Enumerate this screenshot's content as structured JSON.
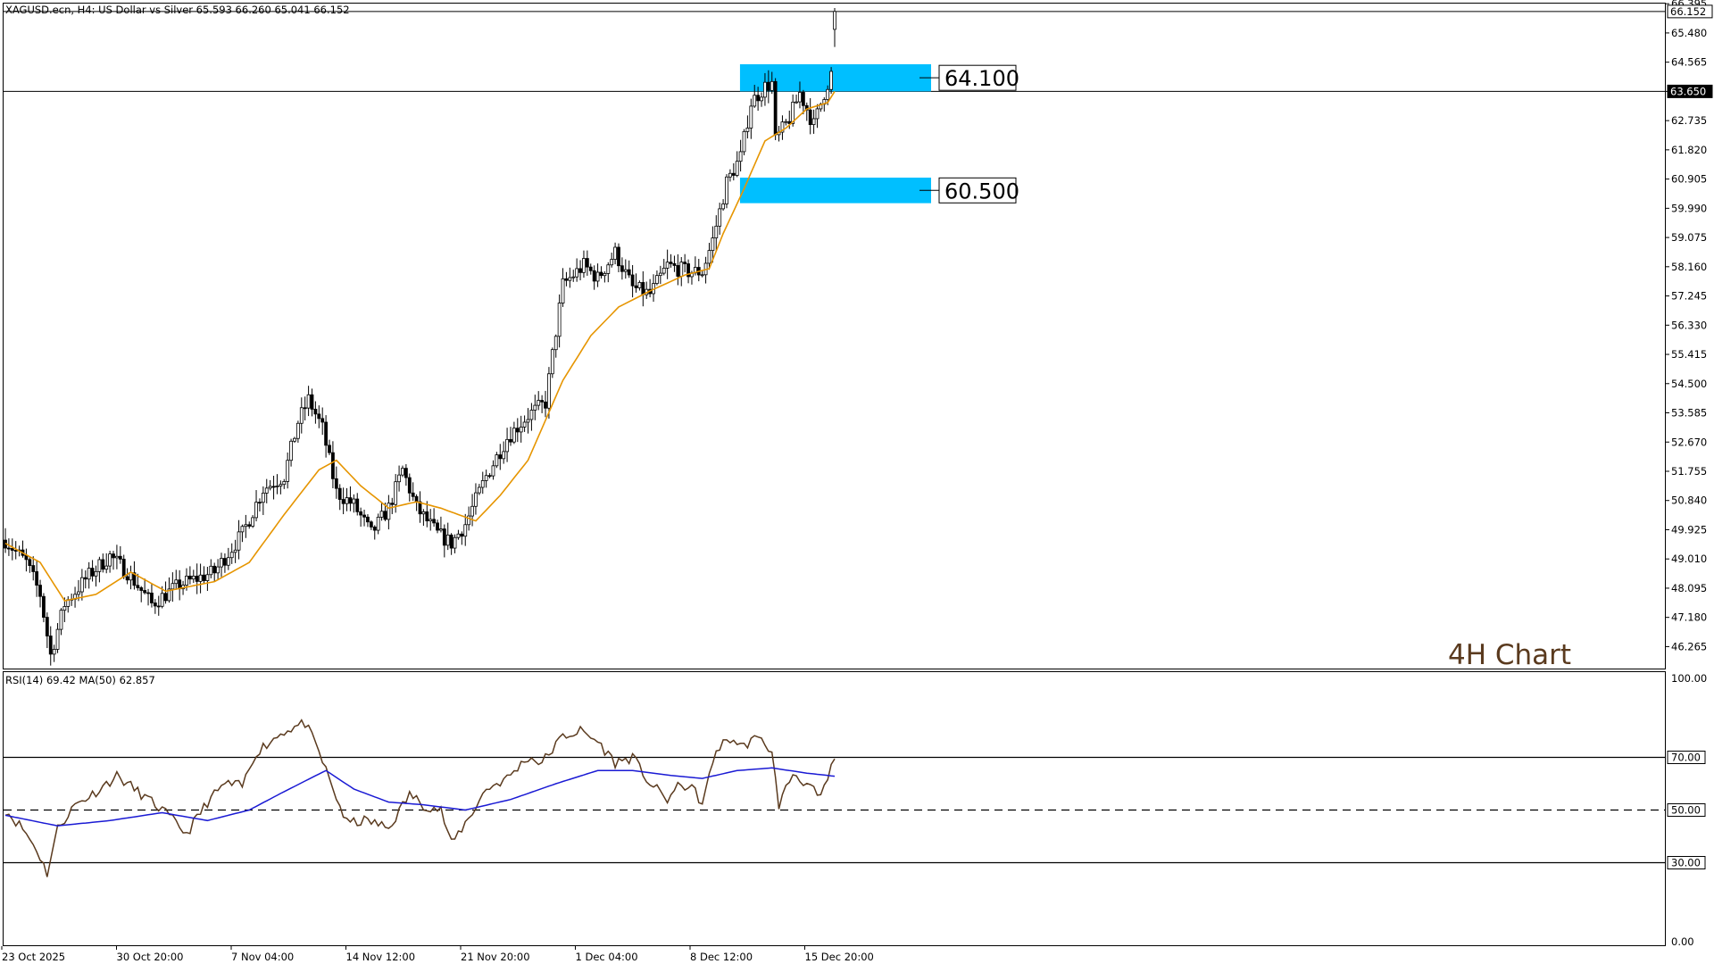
{
  "header": {
    "info": "XAGUSD.ecn, H4:  US Dollar vs Silver  65.593 66.260 65.041 66.152"
  },
  "rsi_header": {
    "info": "RSI(14) 69.42 MA(50) 62.857"
  },
  "watermark": "4H Chart",
  "colors": {
    "bull": "#000000",
    "bear": "#000000",
    "ma": "#e69500",
    "zone": "#00bfff",
    "rsi": "#5a3a1e",
    "rsi_ma": "#1a1ad4",
    "watermark": "#5a3a1e"
  },
  "chart_data": [
    {
      "type": "candlestick",
      "symbol": "XAGUSD.ecn",
      "timeframe": "H4",
      "description": "US Dollar vs Silver",
      "last_bar": {
        "open": 65.593,
        "high": 66.26,
        "low": 65.041,
        "close": 66.152
      },
      "ylim": [
        45.55,
        66.4
      ],
      "price_ticks": [
        "66.395",
        "65.480",
        "64.565",
        "63.650",
        "62.735",
        "61.820",
        "60.905",
        "59.990",
        "59.075",
        "58.160",
        "57.245",
        "56.330",
        "55.415",
        "54.500",
        "53.585",
        "52.670",
        "51.755",
        "50.840",
        "49.925",
        "49.010",
        "48.095",
        "47.180",
        "46.265"
      ],
      "current_price_label": "66.152",
      "horizontal_lines": [
        {
          "price": 66.152,
          "label": "66.152"
        },
        {
          "price": 63.65,
          "label": "63.650"
        }
      ],
      "zones": [
        {
          "top": 64.5,
          "bottom": 63.65,
          "label": "64.100"
        },
        {
          "top": 60.95,
          "bottom": 60.15,
          "label": "60.500"
        }
      ],
      "x_labels": [
        "23 Oct 2025",
        "30 Oct 20:00",
        "7 Nov 04:00",
        "14 Nov 12:00",
        "21 Nov 20:00",
        "1 Dec 04:00",
        "8 Dec 12:00",
        "15 Dec 20:00"
      ],
      "ma_period": 20,
      "close_path": [
        [
          0,
          49.6
        ],
        [
          6,
          48.9
        ],
        [
          10,
          47.9
        ],
        [
          13,
          46.0
        ],
        [
          17,
          47.6
        ],
        [
          24,
          48.5
        ],
        [
          30,
          49.1
        ],
        [
          35,
          48.6
        ],
        [
          42,
          47.6
        ],
        [
          50,
          48.2
        ],
        [
          60,
          48.6
        ],
        [
          68,
          49.8
        ],
        [
          74,
          51.2
        ],
        [
          80,
          51.6
        ],
        [
          84,
          53.3
        ],
        [
          87,
          54.0
        ],
        [
          91,
          53.1
        ],
        [
          95,
          51.1
        ],
        [
          100,
          50.7
        ],
        [
          105,
          49.8
        ],
        [
          110,
          50.6
        ],
        [
          114,
          51.8
        ],
        [
          118,
          50.6
        ],
        [
          124,
          49.8
        ],
        [
          128,
          49.5
        ],
        [
          132,
          50.1
        ],
        [
          138,
          51.6
        ],
        [
          144,
          52.8
        ],
        [
          150,
          53.5
        ],
        [
          155,
          53.9
        ],
        [
          157,
          55.4
        ],
        [
          160,
          57.6
        ],
        [
          166,
          58.2
        ],
        [
          170,
          57.8
        ],
        [
          175,
          58.6
        ],
        [
          180,
          57.5
        ],
        [
          185,
          57.3
        ],
        [
          190,
          58.2
        ],
        [
          196,
          58.0
        ],
        [
          200,
          58.0
        ],
        [
          203,
          59.0
        ],
        [
          207,
          60.8
        ],
        [
          211,
          61.6
        ],
        [
          214,
          63.3
        ],
        [
          218,
          63.8
        ],
        [
          220,
          63.9
        ],
        [
          221,
          62.1
        ],
        [
          225,
          62.8
        ],
        [
          228,
          63.6
        ],
        [
          232,
          62.6
        ],
        [
          235,
          63.6
        ],
        [
          237,
          64.2
        ],
        [
          238,
          66.152
        ]
      ],
      "ma_path": [
        [
          0,
          49.5
        ],
        [
          10,
          48.9
        ],
        [
          17,
          47.7
        ],
        [
          26,
          47.9
        ],
        [
          36,
          48.6
        ],
        [
          46,
          48.0
        ],
        [
          60,
          48.3
        ],
        [
          70,
          48.9
        ],
        [
          80,
          50.4
        ],
        [
          90,
          51.8
        ],
        [
          95,
          52.1
        ],
        [
          102,
          51.3
        ],
        [
          110,
          50.6
        ],
        [
          118,
          50.8
        ],
        [
          125,
          50.6
        ],
        [
          135,
          50.2
        ],
        [
          142,
          51.0
        ],
        [
          150,
          52.1
        ],
        [
          160,
          54.6
        ],
        [
          168,
          56.0
        ],
        [
          176,
          56.9
        ],
        [
          185,
          57.4
        ],
        [
          195,
          57.9
        ],
        [
          202,
          58.1
        ],
        [
          206,
          59.2
        ],
        [
          212,
          60.6
        ],
        [
          218,
          62.1
        ],
        [
          224,
          62.5
        ],
        [
          230,
          63.1
        ],
        [
          236,
          63.3
        ],
        [
          238,
          63.65
        ]
      ]
    },
    {
      "type": "line",
      "title": "RSI(14) 69.42 MA(50) 62.857",
      "ylim": [
        0,
        100
      ],
      "y_ticks": [
        "100.00",
        "70.00",
        "50.00",
        "30.00",
        "0.00"
      ],
      "levels": [
        70,
        50,
        30
      ],
      "series": [
        {
          "name": "RSI(14)",
          "values_path": [
            [
              0,
              50
            ],
            [
              5,
              43
            ],
            [
              9,
              35
            ],
            [
              12,
              26
            ],
            [
              15,
              43
            ],
            [
              20,
              52
            ],
            [
              25,
              56
            ],
            [
              32,
              63
            ],
            [
              38,
              57
            ],
            [
              45,
              50
            ],
            [
              52,
              41
            ],
            [
              58,
              53
            ],
            [
              63,
              60
            ],
            [
              68,
              59
            ],
            [
              72,
              72
            ],
            [
              80,
              80
            ],
            [
              86,
              83
            ],
            [
              90,
              72
            ],
            [
              94,
              58
            ],
            [
              98,
              45
            ],
            [
              104,
              46
            ],
            [
              110,
              43
            ],
            [
              116,
              56
            ],
            [
              120,
              52
            ],
            [
              125,
              50
            ],
            [
              128,
              37
            ],
            [
              133,
              47
            ],
            [
              138,
              58
            ],
            [
              144,
              62
            ],
            [
              150,
              70
            ],
            [
              154,
              68
            ],
            [
              160,
              78
            ],
            [
              165,
              80
            ],
            [
              170,
              76
            ],
            [
              175,
              68
            ],
            [
              180,
              70
            ],
            [
              185,
              60
            ],
            [
              190,
              54
            ],
            [
              194,
              60
            ],
            [
              198,
              57
            ],
            [
              200,
              52
            ],
            [
              204,
              73
            ],
            [
              208,
              77
            ],
            [
              212,
              74
            ],
            [
              214,
              77
            ],
            [
              218,
              76
            ],
            [
              220,
              71
            ],
            [
              222,
              52
            ],
            [
              226,
              64
            ],
            [
              230,
              60
            ],
            [
              234,
              54
            ],
            [
              236,
              62
            ],
            [
              238,
              69.42
            ]
          ]
        },
        {
          "name": "MA(50)",
          "values_path": [
            [
              0,
              48
            ],
            [
              15,
              44
            ],
            [
              30,
              46
            ],
            [
              45,
              49
            ],
            [
              58,
              46
            ],
            [
              70,
              50
            ],
            [
              80,
              57
            ],
            [
              92,
              65
            ],
            [
              100,
              58
            ],
            [
              110,
              53
            ],
            [
              120,
              52
            ],
            [
              132,
              50
            ],
            [
              145,
              54
            ],
            [
              158,
              60
            ],
            [
              170,
              65
            ],
            [
              180,
              65
            ],
            [
              192,
              63
            ],
            [
              200,
              62
            ],
            [
              210,
              65
            ],
            [
              220,
              66
            ],
            [
              230,
              64
            ],
            [
              238,
              62.857
            ]
          ]
        }
      ]
    }
  ]
}
